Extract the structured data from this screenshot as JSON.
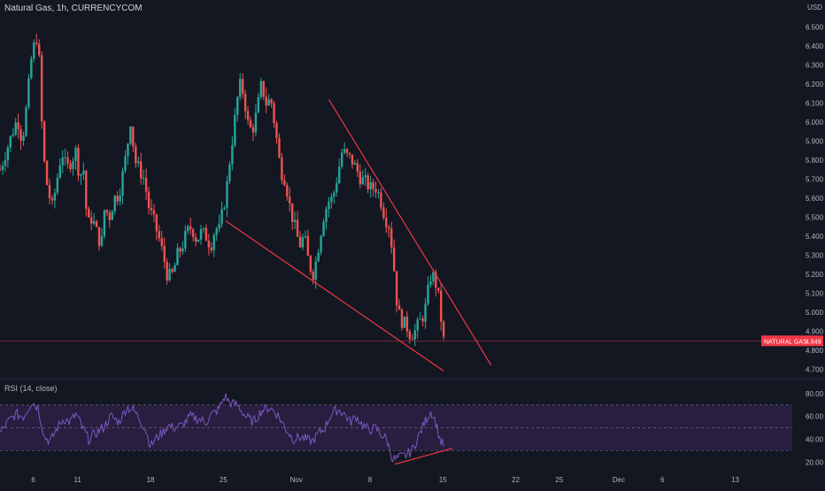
{
  "header": {
    "title": "Natural Gas, 1h, CURRENCYCOM",
    "currency": "USD"
  },
  "price_label": {
    "name": "NATURAL GAS",
    "value": "4.849",
    "color": "#f23645"
  },
  "rsi_title": "RSI (14, close)",
  "colors": {
    "background": "#131722",
    "up": "#26a69a",
    "down": "#ef5350",
    "trendline": "#f23645",
    "rsi_line": "#7e57c2",
    "rsi_band": "#2a1f44",
    "grid": "#1e222d",
    "text": "#b2b5be"
  },
  "chart_data": [
    {
      "type": "candlestick",
      "y_ticks": [
        "6.500",
        "6.400",
        "6.300",
        "6.200",
        "6.100",
        "6.000",
        "5.900",
        "5.800",
        "5.700",
        "5.600",
        "5.500",
        "5.400",
        "5.300",
        "5.200",
        "5.100",
        "5.000",
        "4.900",
        "4.800",
        "4.700"
      ],
      "ylim": [
        4.65,
        6.55
      ],
      "x_ticks": [
        {
          "label": "6",
          "pos": 0.042
        },
        {
          "label": "11",
          "pos": 0.098
        },
        {
          "label": "18",
          "pos": 0.19
        },
        {
          "label": "25",
          "pos": 0.282
        },
        {
          "label": "Nov",
          "pos": 0.374
        },
        {
          "label": "8",
          "pos": 0.467
        },
        {
          "label": "15",
          "pos": 0.559
        },
        {
          "label": "22",
          "pos": 0.651
        },
        {
          "label": "25",
          "pos": 0.706
        },
        {
          "label": "Dec",
          "pos": 0.781
        },
        {
          "label": "6",
          "pos": 0.836
        },
        {
          "label": "13",
          "pos": 0.928
        }
      ],
      "close_path": [
        [
          0.0,
          5.75
        ],
        [
          0.008,
          5.85
        ],
        [
          0.016,
          5.95
        ],
        [
          0.022,
          6.02
        ],
        [
          0.028,
          5.9
        ],
        [
          0.034,
          6.1
        ],
        [
          0.04,
          6.35
        ],
        [
          0.046,
          6.45
        ],
        [
          0.05,
          6.3
        ],
        [
          0.054,
          5.85
        ],
        [
          0.06,
          5.65
        ],
        [
          0.066,
          5.55
        ],
        [
          0.072,
          5.7
        ],
        [
          0.078,
          5.85
        ],
        [
          0.084,
          5.75
        ],
        [
          0.09,
          5.8
        ],
        [
          0.096,
          5.85
        ],
        [
          0.1,
          5.72
        ],
        [
          0.106,
          5.75
        ],
        [
          0.11,
          5.45
        ],
        [
          0.116,
          5.5
        ],
        [
          0.122,
          5.42
        ],
        [
          0.128,
          5.35
        ],
        [
          0.132,
          5.55
        ],
        [
          0.138,
          5.5
        ],
        [
          0.144,
          5.6
        ],
        [
          0.15,
          5.62
        ],
        [
          0.156,
          5.75
        ],
        [
          0.16,
          5.85
        ],
        [
          0.165,
          6.02
        ],
        [
          0.17,
          5.8
        ],
        [
          0.176,
          5.75
        ],
        [
          0.182,
          5.7
        ],
        [
          0.188,
          5.55
        ],
        [
          0.194,
          5.48
        ],
        [
          0.2,
          5.4
        ],
        [
          0.206,
          5.3
        ],
        [
          0.212,
          5.18
        ],
        [
          0.218,
          5.2
        ],
        [
          0.224,
          5.3
        ],
        [
          0.23,
          5.35
        ],
        [
          0.236,
          5.42
        ],
        [
          0.242,
          5.45
        ],
        [
          0.248,
          5.38
        ],
        [
          0.254,
          5.42
        ],
        [
          0.26,
          5.4
        ],
        [
          0.266,
          5.35
        ],
        [
          0.272,
          5.45
        ],
        [
          0.276,
          5.42
        ],
        [
          0.282,
          5.55
        ],
        [
          0.286,
          5.65
        ],
        [
          0.29,
          5.8
        ],
        [
          0.296,
          6.0
        ],
        [
          0.302,
          6.2
        ],
        [
          0.308,
          6.15
        ],
        [
          0.312,
          6.0
        ],
        [
          0.318,
          5.95
        ],
        [
          0.324,
          6.05
        ],
        [
          0.33,
          6.2
        ],
        [
          0.336,
          6.1
        ],
        [
          0.342,
          6.12
        ],
        [
          0.348,
          5.95
        ],
        [
          0.354,
          5.75
        ],
        [
          0.36,
          5.7
        ],
        [
          0.366,
          5.55
        ],
        [
          0.372,
          5.45
        ],
        [
          0.378,
          5.35
        ],
        [
          0.384,
          5.4
        ],
        [
          0.39,
          5.25
        ],
        [
          0.396,
          5.2
        ],
        [
          0.402,
          5.35
        ],
        [
          0.408,
          5.5
        ],
        [
          0.414,
          5.58
        ],
        [
          0.42,
          5.6
        ],
        [
          0.426,
          5.72
        ],
        [
          0.432,
          5.85
        ],
        [
          0.438,
          5.82
        ],
        [
          0.444,
          5.8
        ],
        [
          0.45,
          5.75
        ],
        [
          0.456,
          5.7
        ],
        [
          0.462,
          5.68
        ],
        [
          0.468,
          5.65
        ],
        [
          0.474,
          5.66
        ],
        [
          0.48,
          5.6
        ],
        [
          0.486,
          5.5
        ],
        [
          0.492,
          5.45
        ],
        [
          0.498,
          5.2
        ],
        [
          0.502,
          5.0
        ],
        [
          0.508,
          4.95
        ],
        [
          0.514,
          4.92
        ],
        [
          0.518,
          4.88
        ],
        [
          0.524,
          4.9
        ],
        [
          0.53,
          4.95
        ],
        [
          0.536,
          5.0
        ],
        [
          0.54,
          5.1
        ],
        [
          0.544,
          5.2
        ],
        [
          0.548,
          5.18
        ],
        [
          0.552,
          5.12
        ],
        [
          0.556,
          5.0
        ],
        [
          0.558,
          4.9
        ],
        [
          0.56,
          4.85
        ]
      ],
      "trendlines": [
        {
          "from": [
            0.415,
            6.12
          ],
          "to": [
            0.62,
            4.72
          ]
        },
        {
          "from": [
            0.285,
            5.48
          ],
          "to": [
            0.56,
            4.69
          ]
        }
      ]
    },
    {
      "type": "line",
      "name": "RSI (14, close)",
      "y_ticks": [
        "80.00",
        "60.00",
        "40.00",
        "20.00"
      ],
      "ylim": [
        14,
        90
      ],
      "bands": [
        70,
        50,
        30
      ],
      "close_path": [
        [
          0.0,
          45
        ],
        [
          0.01,
          55
        ],
        [
          0.02,
          62
        ],
        [
          0.03,
          60
        ],
        [
          0.04,
          73
        ],
        [
          0.048,
          68
        ],
        [
          0.056,
          42
        ],
        [
          0.064,
          38
        ],
        [
          0.072,
          50
        ],
        [
          0.08,
          58
        ],
        [
          0.088,
          55
        ],
        [
          0.096,
          62
        ],
        [
          0.104,
          50
        ],
        [
          0.112,
          40
        ],
        [
          0.12,
          45
        ],
        [
          0.13,
          50
        ],
        [
          0.14,
          60
        ],
        [
          0.15,
          55
        ],
        [
          0.16,
          68
        ],
        [
          0.168,
          66
        ],
        [
          0.176,
          58
        ],
        [
          0.184,
          48
        ],
        [
          0.19,
          34
        ],
        [
          0.196,
          40
        ],
        [
          0.204,
          45
        ],
        [
          0.212,
          52
        ],
        [
          0.22,
          50
        ],
        [
          0.23,
          52
        ],
        [
          0.24,
          60
        ],
        [
          0.25,
          58
        ],
        [
          0.26,
          55
        ],
        [
          0.268,
          62
        ],
        [
          0.276,
          66
        ],
        [
          0.284,
          78
        ],
        [
          0.29,
          72
        ],
        [
          0.3,
          70
        ],
        [
          0.31,
          60
        ],
        [
          0.32,
          55
        ],
        [
          0.33,
          65
        ],
        [
          0.34,
          68
        ],
        [
          0.35,
          62
        ],
        [
          0.36,
          50
        ],
        [
          0.37,
          40
        ],
        [
          0.378,
          42
        ],
        [
          0.386,
          40
        ],
        [
          0.394,
          38
        ],
        [
          0.402,
          45
        ],
        [
          0.41,
          50
        ],
        [
          0.418,
          62
        ],
        [
          0.426,
          66
        ],
        [
          0.434,
          63
        ],
        [
          0.442,
          55
        ],
        [
          0.45,
          60
        ],
        [
          0.458,
          52
        ],
        [
          0.466,
          48
        ],
        [
          0.474,
          50
        ],
        [
          0.48,
          45
        ],
        [
          0.488,
          40
        ],
        [
          0.496,
          22
        ],
        [
          0.504,
          24
        ],
        [
          0.512,
          26
        ],
        [
          0.52,
          30
        ],
        [
          0.528,
          42
        ],
        [
          0.536,
          55
        ],
        [
          0.544,
          65
        ],
        [
          0.55,
          55
        ],
        [
          0.556,
          38
        ],
        [
          0.56,
          35
        ]
      ],
      "trendline": {
        "from": [
          0.498,
          18
        ],
        "to": [
          0.571,
          32
        ]
      }
    }
  ]
}
